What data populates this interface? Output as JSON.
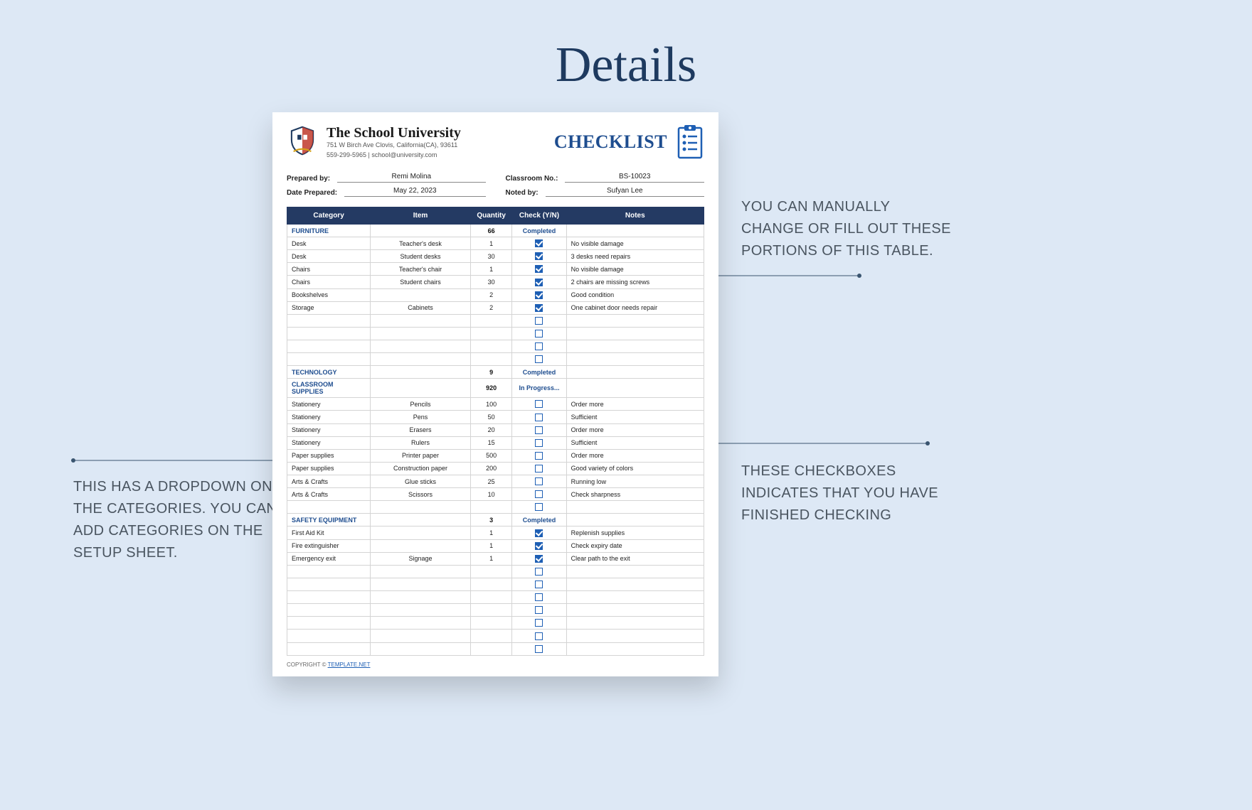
{
  "page_title": "Details",
  "header": {
    "school_name": "The School University",
    "address": "751 W Birch Ave Clovis, California(CA), 93611",
    "contact": "559-299-5965 | school@university.com",
    "checklist_label": "CHECKLIST"
  },
  "meta": {
    "prepared_by_label": "Prepared by:",
    "prepared_by": "Remi Molina",
    "classroom_no_label": "Classroom No.:",
    "classroom_no": "BS-10023",
    "date_prepared_label": "Date Prepared:",
    "date_prepared": "May 22, 2023",
    "noted_by_label": "Noted by:",
    "noted_by": "Sufyan Lee"
  },
  "columns": [
    "Category",
    "Item",
    "Quantity",
    "Check (Y/N)",
    "Notes"
  ],
  "sections": [
    {
      "name": "FURNITURE",
      "qty": "66",
      "status": "Completed",
      "rows": [
        {
          "cat": "Desk",
          "item": "Teacher's desk",
          "qty": "1",
          "checked": true,
          "notes": "No visible damage"
        },
        {
          "cat": "Desk",
          "item": "Student desks",
          "qty": "30",
          "checked": true,
          "notes": "3 desks need repairs"
        },
        {
          "cat": "Chairs",
          "item": "Teacher's chair",
          "qty": "1",
          "checked": true,
          "notes": "No visible damage"
        },
        {
          "cat": "Chairs",
          "item": "Student chairs",
          "qty": "30",
          "checked": true,
          "notes": "2 chairs are missing screws"
        },
        {
          "cat": "Bookshelves",
          "item": "",
          "qty": "2",
          "checked": true,
          "notes": "Good condition"
        },
        {
          "cat": "Storage",
          "item": "Cabinets",
          "qty": "2",
          "checked": true,
          "notes": "One cabinet door needs repair"
        }
      ],
      "blank_after": 4
    },
    {
      "name": "TECHNOLOGY",
      "qty": "9",
      "status": "Completed",
      "rows": [],
      "blank_after": 0
    },
    {
      "name": "CLASSROOM SUPPLIES",
      "qty": "920",
      "status": "In Progress...",
      "rows": [
        {
          "cat": "Stationery",
          "item": "Pencils",
          "qty": "100",
          "checked": false,
          "notes": "Order more"
        },
        {
          "cat": "Stationery",
          "item": "Pens",
          "qty": "50",
          "checked": false,
          "notes": "Sufficient"
        },
        {
          "cat": "Stationery",
          "item": "Erasers",
          "qty": "20",
          "checked": false,
          "notes": "Order more"
        },
        {
          "cat": "Stationery",
          "item": "Rulers",
          "qty": "15",
          "checked": false,
          "notes": "Sufficient"
        },
        {
          "cat": "Paper supplies",
          "item": "Printer paper",
          "qty": "500",
          "checked": false,
          "notes": "Order more"
        },
        {
          "cat": "Paper supplies",
          "item": "Construction paper",
          "qty": "200",
          "checked": false,
          "notes": "Good variety of colors"
        },
        {
          "cat": "Arts & Crafts",
          "item": "Glue sticks",
          "qty": "25",
          "checked": false,
          "notes": "Running low"
        },
        {
          "cat": "Arts & Crafts",
          "item": "Scissors",
          "qty": "10",
          "checked": false,
          "notes": "Check sharpness"
        }
      ],
      "blank_after": 1
    },
    {
      "name": "SAFETY EQUIPMENT",
      "qty": "3",
      "status": "Completed",
      "rows": [
        {
          "cat": "First Aid Kit",
          "item": "",
          "qty": "1",
          "checked": true,
          "notes": "Replenish supplies"
        },
        {
          "cat": "Fire extinguisher",
          "item": "",
          "qty": "1",
          "checked": true,
          "notes": "Check expiry date"
        },
        {
          "cat": "Emergency exit",
          "item": "Signage",
          "qty": "1",
          "checked": true,
          "notes": "Clear path to the exit"
        }
      ],
      "blank_after": 7
    }
  ],
  "copyright": {
    "prefix": "COPYRIGHT © ",
    "link": "TEMPLATE.NET"
  },
  "callouts": {
    "right1": "YOU CAN MANUALLY CHANGE OR FILL OUT THESE PORTIONS OF THIS TABLE.",
    "right2": "THESE CHECKBOXES INDICATES THAT YOU HAVE FINISHED CHECKING",
    "left1": "THIS HAS A DROPDOWN ON THE CATEGORIES. YOU CAN ADD CATEGORIES ON THE SETUP SHEET."
  },
  "colors": {
    "page_bg": "#dde8f5",
    "title": "#1e3a5f",
    "header_blue": "#243a63",
    "accent_blue": "#1e5fb4",
    "section_blue": "#1e4d8f",
    "border_gray": "#d4d4d4",
    "callout_gray": "#4a5560"
  }
}
